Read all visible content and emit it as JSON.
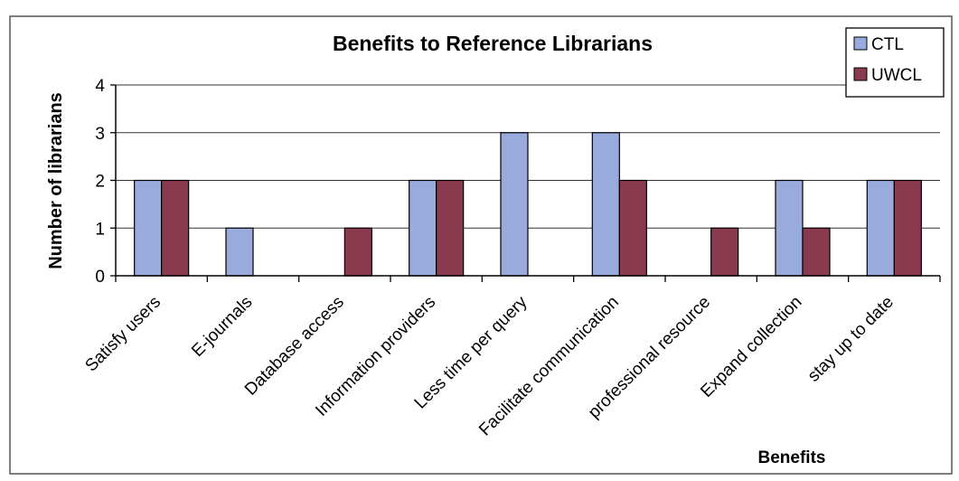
{
  "chart_data": {
    "type": "bar",
    "title": "Benefits to Reference Librarians",
    "xlabel": "Benefits",
    "ylabel": "Number of librarians",
    "ylim": [
      0,
      4
    ],
    "yticks": [
      0,
      1,
      2,
      3,
      4
    ],
    "grid": true,
    "legend_position": "top-right",
    "categories": [
      "Satisfy users",
      "E-journals",
      "Database access",
      "Information providers",
      "Less time per query",
      "Facilitate communication",
      "professional resource",
      "Expand collection",
      "stay up to date"
    ],
    "series": [
      {
        "name": "CTL",
        "color": "#99aadd",
        "values": [
          2,
          1,
          0,
          2,
          3,
          3,
          0,
          2,
          2
        ]
      },
      {
        "name": "UWCL",
        "color": "#8a3a4e",
        "values": [
          2,
          0,
          1,
          2,
          0,
          2,
          1,
          1,
          2
        ]
      }
    ]
  }
}
